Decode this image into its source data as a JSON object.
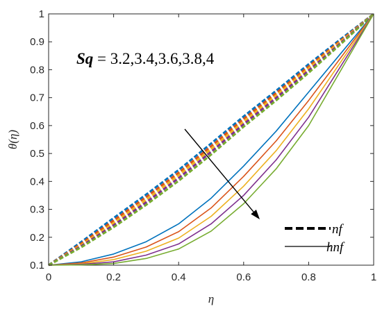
{
  "chart_data": {
    "type": "line",
    "title": "",
    "xlabel": "η",
    "ylabel": "θ(η)",
    "xlim": [
      0,
      1
    ],
    "ylim": [
      0.1,
      1
    ],
    "xticks": [
      "0",
      "0.2",
      "0.4",
      "0.6",
      "0.8",
      "1"
    ],
    "yticks": [
      "0.1",
      "0.2",
      "0.3",
      "0.4",
      "0.5",
      "0.6",
      "0.7",
      "0.8",
      "0.9",
      "1"
    ],
    "grid": false,
    "annotation": {
      "symbol": "Sq",
      "equals": " = ",
      "values": "3.2,3.4,3.6,3.8,4"
    },
    "arrow_direction": "increasing Sq",
    "legend": {
      "placement": "bottom-right",
      "entries": [
        {
          "label": "nf",
          "style": "dashed"
        },
        {
          "label": "hnf",
          "style": "solid"
        }
      ]
    },
    "colors": [
      "#0072BD",
      "#D95319",
      "#EDB120",
      "#7E2F8E",
      "#77AC30"
    ],
    "x": [
      0,
      0.1,
      0.2,
      0.3,
      0.4,
      0.5,
      0.6,
      0.7,
      0.8,
      0.9,
      1.0
    ],
    "series": [
      {
        "group": "nf",
        "Sq": 3.2,
        "color": "#0072BD",
        "values": [
          0.1,
          0.183,
          0.269,
          0.353,
          0.441,
          0.536,
          0.633,
          0.725,
          0.82,
          0.911,
          1.0
        ]
      },
      {
        "group": "nf",
        "Sq": 3.4,
        "color": "#D95319",
        "values": [
          0.1,
          0.177,
          0.26,
          0.344,
          0.431,
          0.526,
          0.624,
          0.716,
          0.812,
          0.906,
          1.0
        ]
      },
      {
        "group": "nf",
        "Sq": 3.6,
        "color": "#EDB120",
        "values": [
          0.1,
          0.172,
          0.251,
          0.334,
          0.422,
          0.516,
          0.614,
          0.708,
          0.805,
          0.902,
          1.0
        ]
      },
      {
        "group": "nf",
        "Sq": 3.8,
        "color": "#7E2F8E",
        "values": [
          0.1,
          0.168,
          0.243,
          0.325,
          0.412,
          0.506,
          0.605,
          0.699,
          0.797,
          0.897,
          1.0
        ]
      },
      {
        "group": "nf",
        "Sq": 4.0,
        "color": "#77AC30",
        "values": [
          0.1,
          0.164,
          0.236,
          0.316,
          0.402,
          0.496,
          0.596,
          0.69,
          0.789,
          0.893,
          1.0
        ]
      },
      {
        "group": "hnf",
        "Sq": 3.2,
        "color": "#0072BD",
        "values": [
          0.1,
          0.112,
          0.14,
          0.184,
          0.248,
          0.34,
          0.455,
          0.58,
          0.72,
          0.86,
          1.0
        ]
      },
      {
        "group": "hnf",
        "Sq": 3.4,
        "color": "#D95319",
        "values": [
          0.1,
          0.108,
          0.129,
          0.165,
          0.22,
          0.305,
          0.418,
          0.545,
          0.69,
          0.845,
          1.0
        ]
      },
      {
        "group": "hnf",
        "Sq": 3.6,
        "color": "#EDB120",
        "values": [
          0.1,
          0.105,
          0.12,
          0.15,
          0.197,
          0.275,
          0.383,
          0.51,
          0.66,
          0.83,
          1.0
        ]
      },
      {
        "group": "hnf",
        "Sq": 3.8,
        "color": "#7E2F8E",
        "values": [
          0.1,
          0.103,
          0.112,
          0.136,
          0.176,
          0.248,
          0.35,
          0.477,
          0.63,
          0.815,
          1.0
        ]
      },
      {
        "group": "hnf",
        "Sq": 4.0,
        "color": "#77AC30",
        "values": [
          0.1,
          0.101,
          0.106,
          0.124,
          0.158,
          0.222,
          0.32,
          0.445,
          0.6,
          0.8,
          1.0
        ]
      }
    ]
  }
}
